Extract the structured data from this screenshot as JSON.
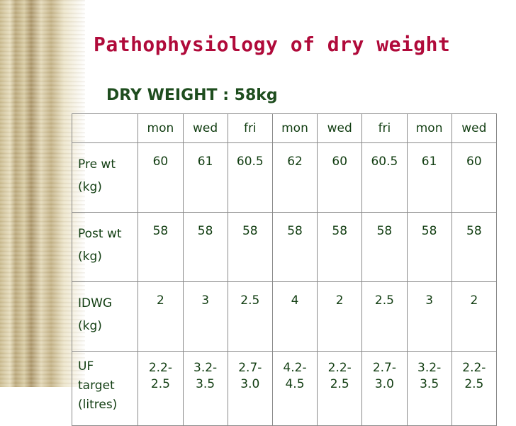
{
  "slide": {
    "title": "Pathophysiology of dry weight",
    "subtitle": "DRY WEIGHT : 58kg"
  },
  "table": {
    "days": [
      "mon",
      "wed",
      "fri",
      "mon",
      "wed",
      "fri",
      "mon",
      "wed"
    ],
    "pre_wt": {
      "label1": "Pre wt",
      "label2": "(kg)",
      "values": [
        "60",
        "61",
        "60.5",
        "62",
        "60",
        "60.5",
        "61",
        "60"
      ]
    },
    "post_wt": {
      "label1": "Post wt",
      "label2": "(kg)",
      "values": [
        "58",
        "58",
        "58",
        "58",
        "58",
        "58",
        "58",
        "58"
      ]
    },
    "idwg": {
      "label1": "IDWG",
      "label2": "(kg)",
      "values": [
        "2",
        "3",
        "2.5",
        "4",
        "2",
        "2.5",
        "3",
        "2"
      ]
    },
    "uf": {
      "label1": "UF",
      "label2": "target",
      "label3": "(litres)",
      "values": [
        [
          "2.2-",
          "2.5"
        ],
        [
          "3.2-",
          "3.5"
        ],
        [
          "2.7-",
          "3.0"
        ],
        [
          "4.2-",
          "4.5"
        ],
        [
          "2.2-",
          "2.5"
        ],
        [
          "2.7-",
          "3.0"
        ],
        [
          "3.2-",
          "3.5"
        ],
        [
          "2.2-",
          "2.5"
        ]
      ]
    }
  },
  "colors": {
    "title": "#b00a3a",
    "subtitle": "#1e4d1e",
    "table_text": "#123e12"
  }
}
